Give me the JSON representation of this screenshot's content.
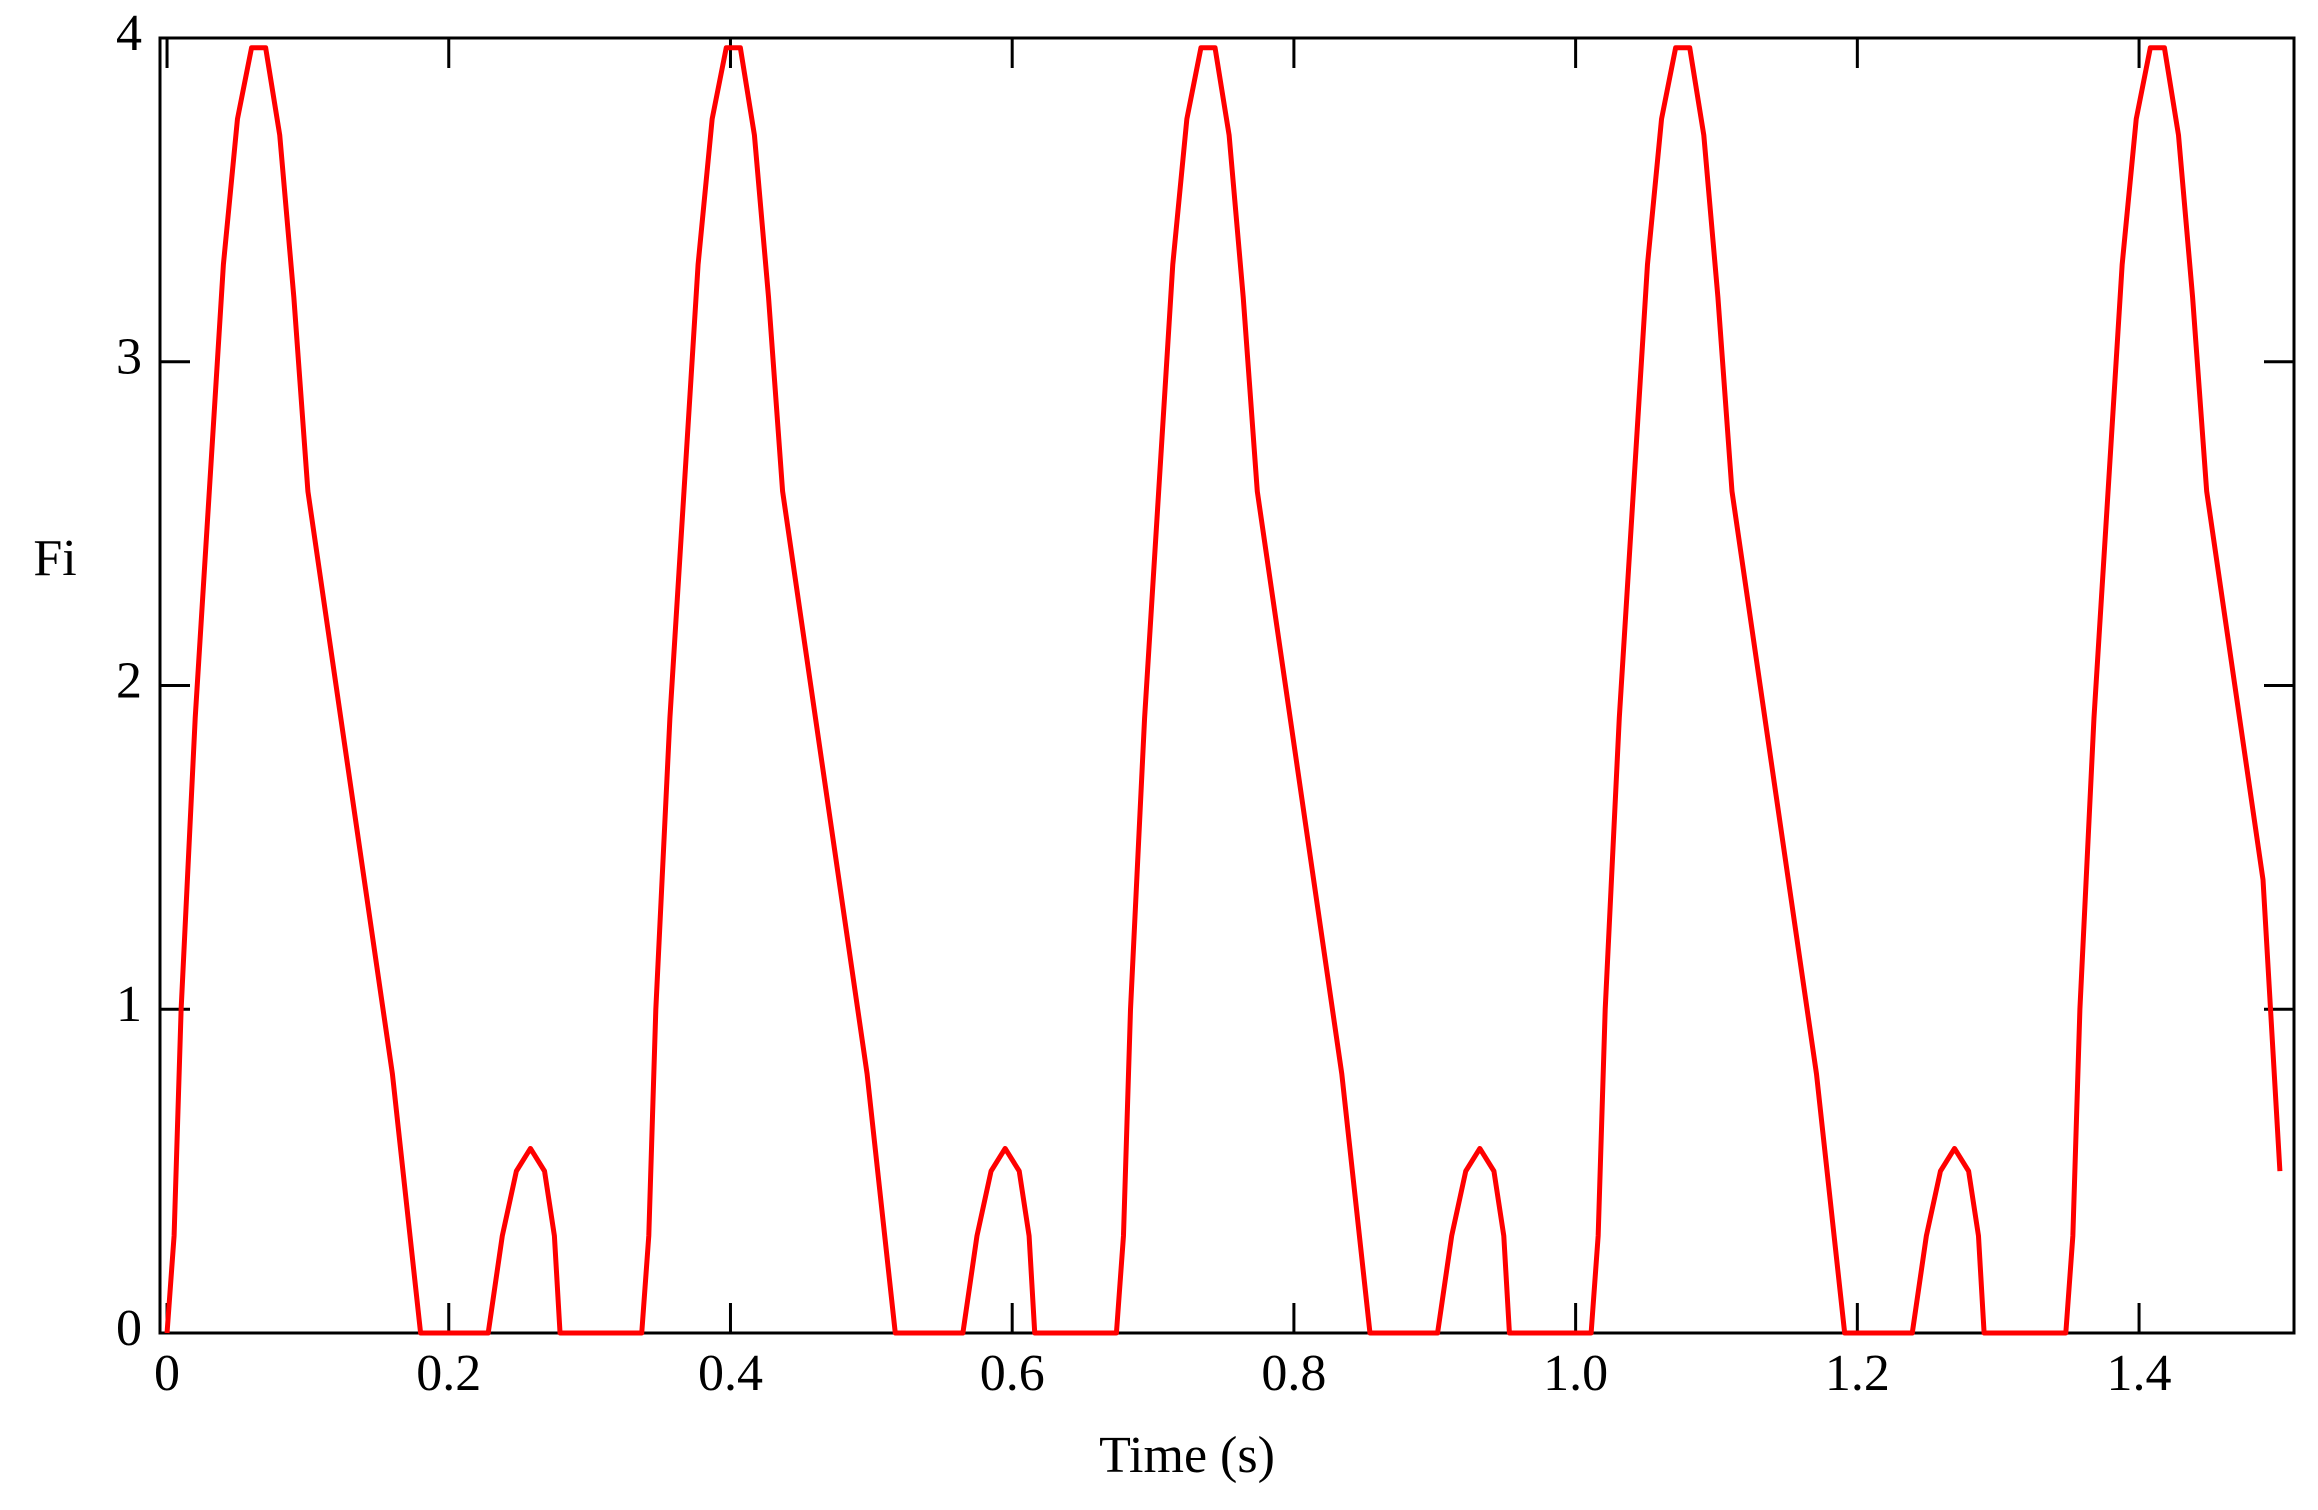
{
  "chart_data": {
    "type": "line",
    "x_label": "Time (s)",
    "y_label": "Fi",
    "xlim": [
      -0.005,
      1.51
    ],
    "ylim": [
      0,
      4
    ],
    "xticks": [
      0,
      0.2,
      0.4,
      0.6,
      0.8,
      {
        "value": 1,
        "label": "1.0"
      },
      1.2,
      1.4
    ],
    "yticks": [
      0,
      1,
      2,
      3,
      4
    ],
    "series": [
      {
        "name": "Fi",
        "color": "#ff0000",
        "x": [
          0,
          0.005,
          0.01,
          0.02,
          0.03,
          0.04,
          0.05,
          0.06,
          0.07,
          0.08,
          0.09,
          0.1,
          0.12,
          0.14,
          0.16,
          0.175,
          0.18,
          0.228,
          0.238,
          0.248,
          0.258,
          0.268,
          0.275,
          0.279,
          0.337,
          0.342,
          0.347,
          0.357,
          0.367,
          0.377,
          0.387,
          0.397,
          0.407,
          0.417,
          0.427,
          0.437,
          0.457,
          0.477,
          0.497,
          0.512,
          0.517,
          0.565,
          0.575,
          0.585,
          0.595,
          0.605,
          0.612,
          0.616,
          0.674,
          0.679,
          0.684,
          0.694,
          0.704,
          0.714,
          0.724,
          0.734,
          0.744,
          0.754,
          0.764,
          0.774,
          0.794,
          0.814,
          0.834,
          0.849,
          0.854,
          0.902,
          0.912,
          0.922,
          0.932,
          0.942,
          0.949,
          0.953,
          1.011,
          1.016,
          1.021,
          1.031,
          1.041,
          1.051,
          1.061,
          1.071,
          1.081,
          1.091,
          1.101,
          1.111,
          1.131,
          1.151,
          1.171,
          1.186,
          1.191,
          1.239,
          1.249,
          1.259,
          1.269,
          1.279,
          1.286,
          1.29,
          1.348,
          1.353,
          1.358,
          1.368,
          1.378,
          1.388,
          1.398,
          1.408,
          1.418,
          1.428,
          1.438,
          1.448,
          1.468,
          1.488,
          1.5
        ],
        "values": [
          0,
          0.3,
          1.0,
          1.9,
          2.6,
          3.3,
          3.75,
          3.97,
          3.97,
          3.7,
          3.2,
          2.6,
          2.0,
          1.4,
          0.8,
          0.2,
          0,
          0,
          0.3,
          0.5,
          0.57,
          0.5,
          0.3,
          0,
          0,
          0.3,
          1.0,
          1.9,
          2.6,
          3.3,
          3.75,
          3.97,
          3.97,
          3.7,
          3.2,
          2.6,
          2.0,
          1.4,
          0.8,
          0.2,
          0,
          0,
          0.3,
          0.5,
          0.57,
          0.5,
          0.3,
          0,
          0,
          0.3,
          1.0,
          1.9,
          2.6,
          3.3,
          3.75,
          3.97,
          3.97,
          3.7,
          3.2,
          2.6,
          2.0,
          1.4,
          0.8,
          0.2,
          0,
          0,
          0.3,
          0.5,
          0.57,
          0.5,
          0.3,
          0,
          0,
          0.3,
          1.0,
          1.9,
          2.6,
          3.3,
          3.75,
          3.97,
          3.97,
          3.7,
          3.2,
          2.6,
          2.0,
          1.4,
          0.8,
          0.2,
          0,
          0,
          0.3,
          0.5,
          0.57,
          0.5,
          0.3,
          0,
          0,
          0.3,
          1.0,
          1.9,
          2.6,
          3.3,
          3.75,
          3.97,
          3.97,
          3.7,
          3.2,
          2.6,
          2.0,
          1.4,
          0.5
        ]
      }
    ]
  }
}
